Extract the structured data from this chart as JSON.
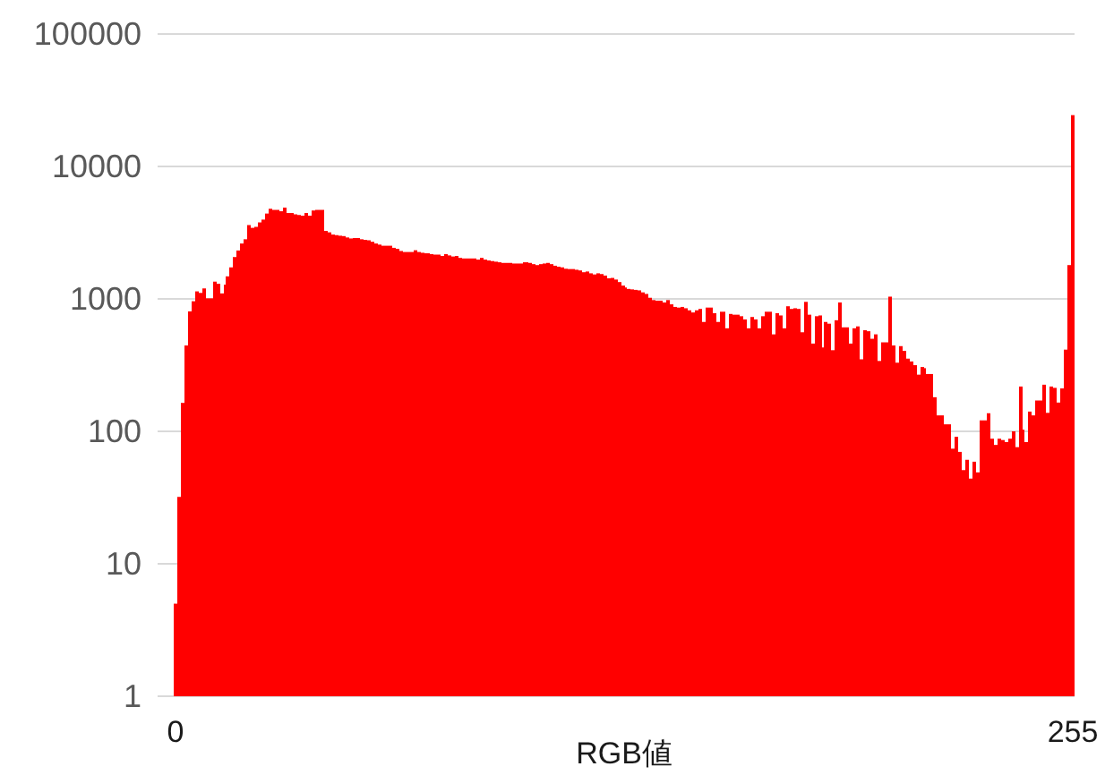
{
  "chart_data": {
    "type": "bar",
    "xlabel": "RGB値",
    "color": "#ff0000",
    "log": true,
    "ylim": [
      1,
      100000
    ],
    "yticks": [
      1,
      10,
      100,
      1000,
      10000,
      100000
    ],
    "grid": "y",
    "categories": [
      "0",
      null,
      null,
      null,
      null,
      null,
      null,
      null,
      null,
      null,
      null,
      null,
      null,
      null,
      null,
      null,
      null,
      null,
      null,
      null,
      null,
      null,
      null,
      null,
      null,
      null,
      null,
      null,
      null,
      null,
      null,
      null,
      null,
      null,
      null,
      null,
      null,
      null,
      null,
      null,
      null,
      null,
      null,
      null,
      null,
      null,
      null,
      null,
      null,
      null,
      null,
      null,
      null,
      null,
      null,
      null,
      null,
      null,
      null,
      null,
      null,
      null,
      null,
      null,
      null,
      null,
      null,
      null,
      null,
      null,
      null,
      null,
      null,
      null,
      null,
      null,
      null,
      null,
      null,
      null,
      null,
      null,
      null,
      null,
      null,
      null,
      null,
      null,
      null,
      null,
      null,
      null,
      null,
      null,
      null,
      null,
      null,
      null,
      null,
      null,
      null,
      null,
      null,
      null,
      null,
      null,
      null,
      null,
      null,
      null,
      null,
      null,
      null,
      null,
      null,
      null,
      null,
      null,
      null,
      null,
      null,
      null,
      null,
      null,
      null,
      null,
      null,
      null,
      null,
      null,
      null,
      null,
      null,
      null,
      null,
      null,
      null,
      null,
      null,
      null,
      null,
      null,
      null,
      null,
      null,
      null,
      null,
      null,
      null,
      null,
      null,
      null,
      null,
      null,
      null,
      null,
      null,
      null,
      null,
      null,
      null,
      null,
      null,
      null,
      null,
      null,
      null,
      null,
      null,
      null,
      null,
      null,
      null,
      null,
      null,
      null,
      null,
      null,
      null,
      null,
      null,
      null,
      null,
      null,
      null,
      null,
      null,
      null,
      null,
      null,
      null,
      null,
      null,
      null,
      null,
      null,
      null,
      null,
      null,
      null,
      null,
      null,
      null,
      null,
      null,
      null,
      null,
      null,
      null,
      null,
      null,
      null,
      null,
      null,
      null,
      null,
      null,
      null,
      null,
      null,
      null,
      null,
      null,
      null,
      null,
      null,
      null,
      null,
      null,
      null,
      null,
      null,
      null,
      null,
      null,
      null,
      null,
      null,
      null,
      null,
      null,
      null,
      null,
      null,
      null,
      null,
      null,
      null,
      null,
      null,
      null,
      null,
      null,
      null,
      null,
      "255"
    ],
    "values": [
      5,
      32,
      164,
      445,
      805,
      960,
      1140,
      1110,
      1200,
      1010,
      1010,
      1350,
      1300,
      1100,
      1280,
      1480,
      1730,
      2070,
      2320,
      2620,
      2820,
      3610,
      3440,
      3500,
      3780,
      3970,
      4410,
      4790,
      4700,
      4700,
      4590,
      4890,
      4450,
      4450,
      4350,
      4300,
      4250,
      4450,
      4250,
      4650,
      4700,
      4700,
      4700,
      3260,
      3180,
      3060,
      3030,
      3000,
      2980,
      2910,
      2860,
      2880,
      2880,
      2820,
      2790,
      2770,
      2700,
      2620,
      2570,
      2520,
      2520,
      2520,
      2430,
      2390,
      2300,
      2260,
      2260,
      2260,
      2330,
      2260,
      2230,
      2210,
      2210,
      2180,
      2160,
      2160,
      2110,
      2180,
      2130,
      2090,
      2110,
      2040,
      2020,
      2020,
      2020,
      2020,
      1980,
      2040,
      1980,
      1950,
      1930,
      1910,
      1890,
      1870,
      1870,
      1870,
      1850,
      1850,
      1850,
      1890,
      1890,
      1870,
      1830,
      1800,
      1830,
      1850,
      1870,
      1830,
      1780,
      1750,
      1730,
      1690,
      1680,
      1680,
      1660,
      1640,
      1590,
      1610,
      1560,
      1530,
      1560,
      1540,
      1500,
      1430,
      1440,
      1400,
      1340,
      1260,
      1220,
      1190,
      1180,
      1170,
      1160,
      1120,
      1090,
      1020,
      980,
      970,
      970,
      940,
      980,
      910,
      870,
      860,
      870,
      850,
      820,
      790,
      820,
      840,
      670,
      860,
      860,
      780,
      670,
      800,
      800,
      600,
      770,
      760,
      760,
      740,
      700,
      600,
      730,
      700,
      600,
      740,
      800,
      800,
      540,
      780,
      750,
      600,
      880,
      840,
      850,
      840,
      560,
      950,
      760,
      460,
      740,
      750,
      430,
      670,
      650,
      410,
      690,
      940,
      610,
      610,
      460,
      600,
      620,
      350,
      580,
      570,
      500,
      540,
      340,
      470,
      470,
      1040,
      445,
      330,
      440,
      405,
      354,
      337,
      316,
      268,
      306,
      300,
      271,
      271,
      181,
      132,
      132,
      113,
      113,
      74,
      91,
      70,
      51,
      61,
      44,
      59,
      49,
      121,
      121,
      137,
      88,
      79,
      88,
      86,
      83,
      88,
      100,
      76,
      218,
      103,
      83,
      141,
      132,
      171,
      171,
      225,
      138,
      218,
      213,
      165,
      211,
      414,
      1800,
      24400
    ]
  }
}
